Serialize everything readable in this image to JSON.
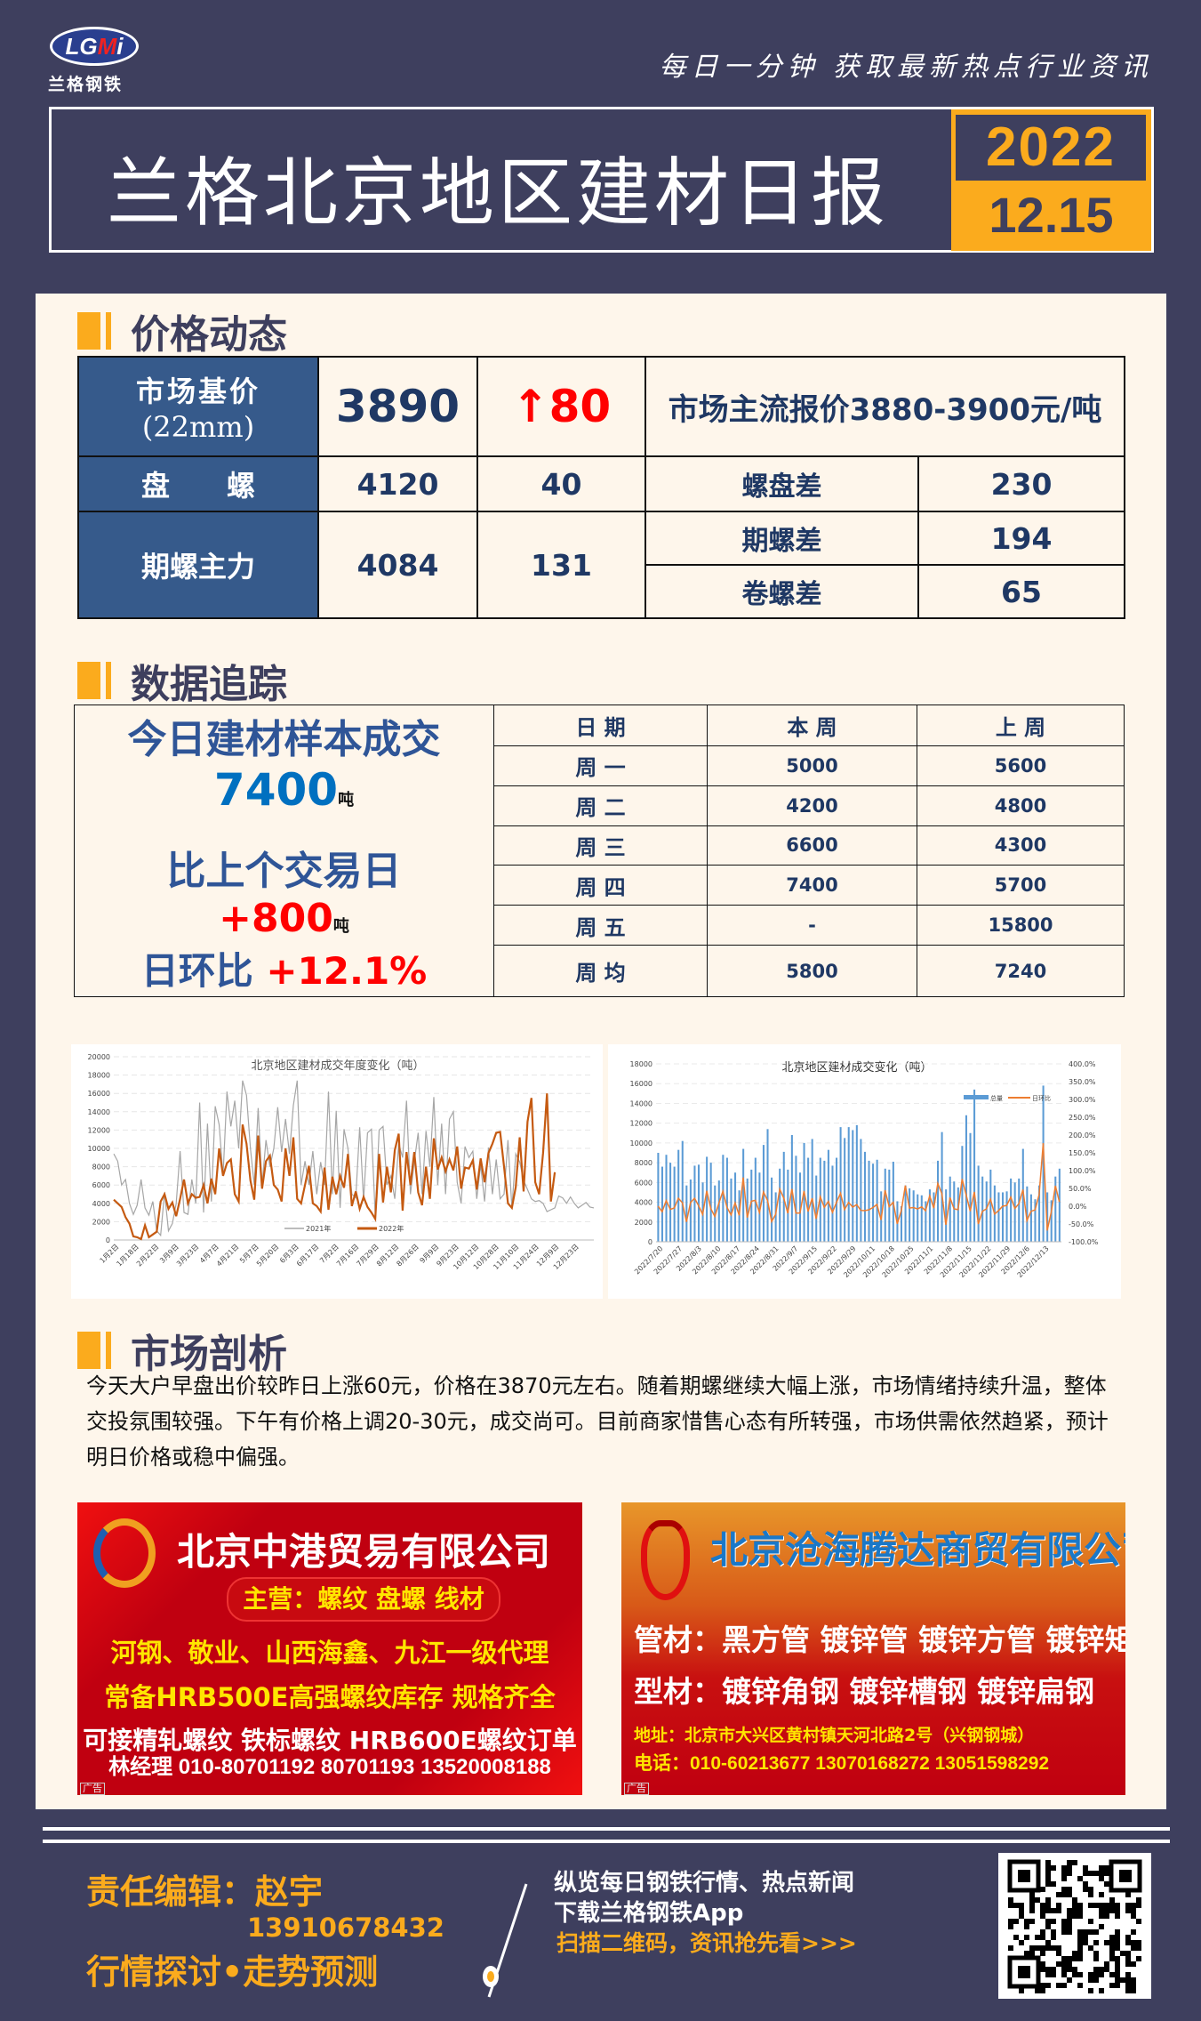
{
  "header": {
    "logo_text": "LGMi",
    "logo_cn": "兰格钢铁",
    "tagline": "每日一分钟  获取最新热点行业资讯",
    "title": "兰格北京地区建材日报",
    "year": "2022",
    "date": "12.15"
  },
  "price": {
    "heading": "价格动态",
    "base_label": "市场基价",
    "base_spec": "(22mm)",
    "base_value": "3890",
    "base_change": "↑80",
    "base_note": "市场主流报价3880-3900元/吨",
    "wire_label": "盘　　螺",
    "wire_value": "4120",
    "wire_change": "40",
    "spread1_label": "螺盘差",
    "spread1_value": "230",
    "futures_label": "期螺主力",
    "futures_value": "4084",
    "futures_change": "131",
    "spread2_label": "期螺差",
    "spread2_value": "194",
    "spread3_label": "卷螺差",
    "spread3_value": "65",
    "up_color": "#ff0000"
  },
  "tracking": {
    "heading": "数据追踪",
    "today_label": "今日建材样本成交",
    "today_value": "7400",
    "unit": "吨",
    "compare_label": "比上个交易日",
    "compare_value": "+800",
    "ratio_label": "日环比",
    "ratio_value": "+12.1%",
    "columns": [
      "日 期",
      "本  周",
      "上  周"
    ],
    "rows": [
      [
        "周 一",
        "5000",
        "5600"
      ],
      [
        "周 二",
        "4200",
        "4800"
      ],
      [
        "周 三",
        "6600",
        "4300"
      ],
      [
        "周 四",
        "7400",
        "5700"
      ],
      [
        "周 五",
        "-",
        "15800"
      ],
      [
        "周 均",
        "5800",
        "7240"
      ]
    ]
  },
  "chart_data": [
    {
      "type": "line",
      "title": "北京地区建材成交年度变化（吨）",
      "ylim": [
        0,
        20000
      ],
      "yticks": [
        0,
        2000,
        4000,
        6000,
        8000,
        10000,
        12000,
        14000,
        16000,
        18000,
        20000
      ],
      "xticks": [
        "1月2日",
        "1月18日",
        "2月22日",
        "3月9日",
        "3月23日",
        "4月7日",
        "4月21日",
        "5月7日",
        "5月20日",
        "6月3日",
        "6月17日",
        "7月2日",
        "7月16日",
        "7月29日",
        "8月12日",
        "8月26日",
        "9月9日",
        "9月23日",
        "10月12日",
        "10月28日",
        "11月10日",
        "11月24日",
        "12月9日",
        "12月23日"
      ],
      "grid": true,
      "legend": "bottom-center",
      "series": [
        {
          "name": "2021年",
          "color": "#a6a6a6",
          "values": [
            9400,
            8600,
            6000,
            6600,
            4000,
            2800,
            3800,
            6600,
            3500,
            2700,
            4200,
            1000,
            500,
            5200,
            1000,
            1800,
            4000,
            9700,
            3000,
            2800,
            6600,
            4000,
            15000,
            3000,
            12700,
            4200,
            14600,
            12600,
            7000,
            16200,
            12400,
            15200,
            10000,
            17400,
            15800,
            10000,
            6000,
            14400,
            6000,
            10900,
            8000,
            10000,
            14500,
            9600,
            13200,
            9400,
            14700,
            17400,
            6000,
            8600,
            6000,
            9700,
            5000,
            8500,
            6000,
            16200,
            5000,
            14100,
            3500,
            12100,
            10000,
            5000,
            4600,
            12300,
            4300,
            11700,
            12100,
            2700,
            12000,
            12400,
            6000,
            7000,
            4500,
            10500,
            9000,
            15200,
            5000,
            8500,
            11700,
            5000,
            11900,
            8000,
            15600,
            6000,
            12700,
            5000,
            13200,
            14000,
            6300,
            4000,
            10200,
            9000,
            9700,
            4500,
            8200,
            4200,
            10100,
            5000,
            8800,
            4500,
            5000,
            10900,
            3500,
            9400,
            8500,
            6500,
            5500,
            4500,
            4200,
            4300,
            4000,
            3100,
            3300,
            3500,
            4800,
            4600,
            4000,
            4700,
            4000,
            3500,
            3800,
            4100,
            3600,
            3500
          ]
        },
        {
          "name": "2022年",
          "color": "#c55a11",
          "values": [
            4400,
            4000,
            3600,
            2500,
            1800,
            400,
            300,
            100,
            1600,
            300,
            600,
            900,
            4200,
            5000,
            3400,
            4100,
            2600,
            4500,
            6600,
            4000,
            5000,
            4600,
            4700,
            6000,
            4000,
            6700,
            5000,
            10000,
            7000,
            8400,
            8800,
            5000,
            4200,
            12600,
            10500,
            6500,
            4400,
            11400,
            5600,
            8600,
            9200,
            6000,
            5500,
            4200,
            10000,
            7000,
            11200,
            4500,
            4000,
            6000,
            8100,
            4000,
            3700,
            3100,
            7900,
            3300,
            6900,
            5000,
            7000,
            5700,
            9400,
            3700,
            5300,
            3400,
            4700,
            3600,
            3000,
            2300,
            9400,
            4100,
            8000,
            5200,
            9800,
            11600,
            3200,
            9600,
            6000,
            9600,
            5200,
            3800,
            8000,
            4500,
            11100,
            7700,
            9000,
            7500,
            8800,
            7600,
            10200,
            5600,
            7900,
            7800,
            8700,
            5500,
            8900,
            6300,
            9500,
            10500,
            11700,
            11800,
            8000,
            4000,
            3500,
            5800,
            11200,
            5300,
            12900,
            15500,
            6300,
            5000,
            9500,
            16000,
            4200,
            7400
          ]
        }
      ]
    },
    {
      "type": "bar+line",
      "title": "北京地区建材成交变化（吨）",
      "ylim": [
        0,
        18000
      ],
      "yticks": [
        0,
        2000,
        4000,
        6000,
        8000,
        10000,
        12000,
        14000,
        16000,
        18000
      ],
      "y2lim": [
        -100,
        400
      ],
      "y2ticks": [
        "-100.0%",
        "-50.0%",
        "0.0%",
        "50.0%",
        "100.0%",
        "150.0%",
        "200.0%",
        "250.0%",
        "300.0%",
        "350.0%",
        "400.0%"
      ],
      "xticks": [
        "2022/7/20",
        "2022/7/27",
        "2022/8/3",
        "2022/8/10",
        "2022/8/17",
        "2022/8/24",
        "2022/8/31",
        "2022/9/7",
        "2022/9/15",
        "2022/9/22",
        "2022/9/29",
        "2022/10/11",
        "2022/10/18",
        "2022/10/25",
        "2022/11/1",
        "2022/11/8",
        "2022/11/15",
        "2022/11/22",
        "2022/11/29",
        "2022/12/6",
        "2022/12/13"
      ],
      "grid": true,
      "legend": "top-right",
      "series": [
        {
          "name": "总量",
          "type": "bar",
          "color": "#5b9bd5",
          "values": [
            9000,
            7600,
            8800,
            8000,
            7600,
            9300,
            10200,
            5700,
            6300,
            7700,
            7800,
            6000,
            8600,
            8000,
            5700,
            6200,
            8800,
            8500,
            6400,
            7000,
            5200,
            9400,
            6400,
            7300,
            8500,
            7000,
            9800,
            11400,
            6500,
            5000,
            7400,
            9100,
            7300,
            10800,
            8700,
            7000,
            10000,
            8500,
            10400,
            6700,
            8500,
            8200,
            9300,
            7700,
            8500,
            11600,
            10500,
            11600,
            11300,
            11800,
            10400,
            9100,
            8200,
            7900,
            8300,
            5100,
            7400,
            7300,
            8100,
            4100,
            3600,
            5700,
            5400,
            5200,
            4800,
            4700,
            4100,
            5300,
            5000,
            8200,
            11100,
            5300,
            6600,
            6100,
            5500,
            9700,
            12800,
            11000,
            15400,
            7700,
            6600,
            6100,
            7300,
            5700,
            5000,
            5000,
            5100,
            6400,
            6000,
            6400,
            9400,
            5600,
            4800,
            4300,
            5700,
            15800,
            5000,
            4200,
            6600,
            7400
          ]
        },
        {
          "name": "日环比",
          "type": "line",
          "color": "#ed7d31",
          "derived": "day-over-day change of 总量 (%)"
        }
      ]
    }
  ],
  "analysis": {
    "heading": "市场剖析",
    "text": "今天大户早盘出价较昨日上涨60元，价格在3870元左右。随着期螺继续大幅上涨，市场情绪持续升温，整体交投氛围较强。下午有价格上调20-30元，成交尚可。目前商家惜售心态有所转强，市场供需依然趋紧，预计明日价格或稳中偏强。"
  },
  "ads": [
    {
      "company": "北京中港贸易有限公司",
      "main": "主营：螺纹 盘螺 线材",
      "line1": "河钢、敬业、山西海鑫、九江一级代理",
      "line2": "常备HRB500E高强螺纹库存 规格齐全",
      "line3": "可接精轧螺纹 铁标螺纹 HRB600E螺纹订单",
      "contact": "林经理 010-80701192 80701193  13520008188",
      "tag": "广告"
    },
    {
      "company": "北京沧海腾达商贸有限公司",
      "line1": "管材：黑方管 镀锌管 镀锌方管 镀锌矩管",
      "line2": "型材：镀锌角钢 镀锌槽钢 镀锌扁钢",
      "address": "地址：北京市大兴区黄村镇天河北路2号（兴钢钢城）",
      "phone": "电话：010-60213677 13070168272 13051598292",
      "tag": "广告"
    }
  ],
  "footer": {
    "editor": "责任编辑：赵宇",
    "phone": "13910678432",
    "slogan": "行情探讨•走势预测",
    "promo1": "纵览每日钢铁行情、热点新闻",
    "promo2": "下载兰格钢铁App",
    "promo3": "扫描二维码，资讯抢先看>>>",
    "accent": "#fbab1d"
  }
}
